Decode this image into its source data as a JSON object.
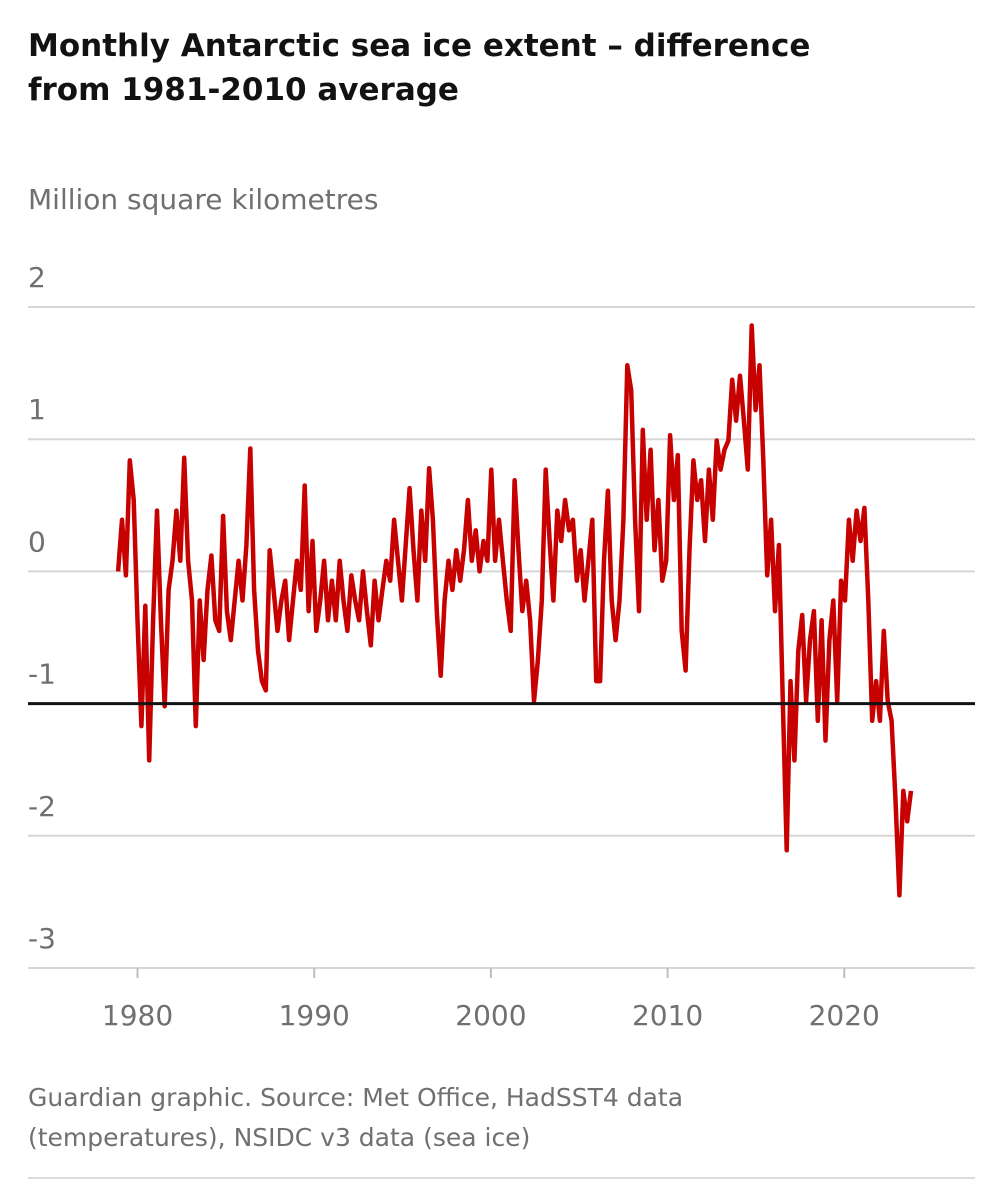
{
  "chart_data": {
    "type": "line",
    "title": "Monthly Antarctic sea ice extent – difference from 1981-2010 average",
    "y_label": "Million square kilometres",
    "source": "Guardian graphic. Source: Met Office, HadSST4 data (temperatures), NSIDC v3 data (sea ice)",
    "color": "#c70000",
    "grid": true,
    "reference_y": -1,
    "xlim": [
      1973.8,
      2027.4
    ],
    "xticks": [
      1980,
      1990,
      2000,
      2010,
      2020
    ],
    "ylim": [
      -3,
      2
    ],
    "yticks": [
      2,
      1,
      0,
      -1,
      -2,
      -3
    ],
    "x": [
      1978.9,
      1979.12,
      1979.34,
      1979.56,
      1979.78,
      1980.0,
      1980.22,
      1980.44,
      1980.66,
      1980.88,
      1981.1,
      1981.32,
      1981.54,
      1981.76,
      1981.98,
      1982.2,
      1982.42,
      1982.64,
      1982.86,
      1983.08,
      1983.3,
      1983.52,
      1983.74,
      1983.96,
      1984.18,
      1984.4,
      1984.62,
      1984.84,
      1985.06,
      1985.28,
      1985.5,
      1985.72,
      1985.94,
      1986.16,
      1986.38,
      1986.6,
      1986.82,
      1987.04,
      1987.26,
      1987.48,
      1987.7,
      1987.92,
      1988.14,
      1988.36,
      1988.58,
      1988.8,
      1989.02,
      1989.24,
      1989.46,
      1989.68,
      1989.9,
      1990.12,
      1990.34,
      1990.56,
      1990.78,
      1991.0,
      1991.22,
      1991.44,
      1991.66,
      1991.88,
      1992.1,
      1992.32,
      1992.54,
      1992.76,
      1992.98,
      1993.2,
      1993.42,
      1993.64,
      1993.86,
      1994.08,
      1994.3,
      1994.52,
      1994.74,
      1994.96,
      1995.18,
      1995.4,
      1995.62,
      1995.84,
      1996.06,
      1996.28,
      1996.5,
      1996.72,
      1996.94,
      1997.16,
      1997.38,
      1997.6,
      1997.82,
      1998.04,
      1998.26,
      1998.48,
      1998.7,
      1998.92,
      1999.14,
      1999.36,
      1999.58,
      1999.8,
      2000.02,
      2000.24,
      2000.46,
      2000.68,
      2000.9,
      2001.12,
      2001.34,
      2001.56,
      2001.78,
      2002.0,
      2002.22,
      2002.44,
      2002.66,
      2002.88,
      2003.1,
      2003.32,
      2003.54,
      2003.76,
      2003.98,
      2004.2,
      2004.42,
      2004.64,
      2004.86,
      2005.08,
      2005.3,
      2005.52,
      2005.74,
      2005.96,
      2006.18,
      2006.4,
      2006.62,
      2006.84,
      2007.06,
      2007.28,
      2007.5,
      2007.72,
      2007.94,
      2008.16,
      2008.38,
      2008.6,
      2008.82,
      2009.04,
      2009.26,
      2009.48,
      2009.7,
      2009.92,
      2010.14,
      2010.36,
      2010.58,
      2010.8,
      2011.02,
      2011.24,
      2011.46,
      2011.68,
      2011.9,
      2012.12,
      2012.34,
      2012.56,
      2012.78,
      2013.0,
      2013.22,
      2013.44,
      2013.66,
      2013.88,
      2014.1,
      2014.32,
      2014.54,
      2014.76,
      2014.98,
      2015.2,
      2015.42,
      2015.64,
      2015.86,
      2016.08,
      2016.3,
      2016.52,
      2016.74,
      2016.96,
      2017.18,
      2017.4,
      2017.62,
      2017.84,
      2018.06,
      2018.28,
      2018.5,
      2018.72,
      2018.94,
      2019.16,
      2019.38,
      2019.6,
      2019.82,
      2020.04,
      2020.26,
      2020.48,
      2020.7,
      2020.92,
      2021.14,
      2021.36,
      2021.58,
      2021.8,
      2022.02,
      2022.24,
      2022.46,
      2022.68,
      2022.9,
      2023.12,
      2023.34,
      2023.56,
      2023.78
    ],
    "values": [
      0.0,
      0.39,
      -0.03,
      0.84,
      0.54,
      -0.37,
      -1.17,
      -0.26,
      -1.43,
      -0.37,
      0.46,
      -0.37,
      -1.02,
      -0.14,
      0.08,
      0.46,
      0.08,
      0.86,
      0.08,
      -0.22,
      -1.17,
      -0.22,
      -0.67,
      -0.14,
      0.12,
      -0.37,
      -0.45,
      0.42,
      -0.3,
      -0.52,
      -0.22,
      0.08,
      -0.22,
      0.2,
      0.93,
      -0.14,
      -0.6,
      -0.83,
      -0.9,
      0.16,
      -0.14,
      -0.45,
      -0.22,
      -0.07,
      -0.52,
      -0.22,
      0.08,
      -0.14,
      0.65,
      -0.3,
      0.23,
      -0.45,
      -0.22,
      0.08,
      -0.37,
      -0.07,
      -0.37,
      0.08,
      -0.22,
      -0.45,
      -0.03,
      -0.22,
      -0.37,
      0.0,
      -0.3,
      -0.56,
      -0.07,
      -0.37,
      -0.14,
      0.08,
      -0.07,
      0.39,
      0.08,
      -0.22,
      0.2,
      0.63,
      0.16,
      -0.22,
      0.46,
      0.08,
      0.78,
      0.39,
      -0.3,
      -0.79,
      -0.22,
      0.08,
      -0.14,
      0.16,
      -0.07,
      0.16,
      0.54,
      0.08,
      0.31,
      0.0,
      0.23,
      0.08,
      0.77,
      0.08,
      0.39,
      0.08,
      -0.22,
      -0.45,
      0.69,
      0.16,
      -0.3,
      -0.07,
      -0.37,
      -0.98,
      -0.67,
      -0.22,
      0.77,
      0.23,
      -0.22,
      0.46,
      0.23,
      0.54,
      0.31,
      0.39,
      -0.07,
      0.16,
      -0.22,
      0.08,
      0.39,
      -0.83,
      -0.83,
      0.08,
      0.61,
      -0.22,
      -0.52,
      -0.22,
      0.39,
      1.56,
      1.37,
      0.39,
      -0.3,
      1.07,
      0.39,
      0.92,
      0.16,
      0.54,
      -0.07,
      0.08,
      1.03,
      0.54,
      0.88,
      -0.45,
      -0.75,
      0.16,
      0.84,
      0.54,
      0.69,
      0.23,
      0.77,
      0.39,
      0.99,
      0.77,
      0.92,
      0.99,
      1.45,
      1.14,
      1.48,
      1.14,
      0.77,
      1.86,
      1.22,
      1.56,
      0.84,
      -0.03,
      0.39,
      -0.3,
      0.2,
      -0.98,
      -2.11,
      -0.83,
      -1.43,
      -0.6,
      -0.33,
      -0.98,
      -0.52,
      -0.3,
      -1.13,
      -0.37,
      -1.28,
      -0.52,
      -0.22,
      -0.98,
      -0.07,
      -0.22,
      0.39,
      0.08,
      0.46,
      0.23,
      0.48,
      -0.22,
      -1.13,
      -0.83,
      -1.13,
      -0.45,
      -0.98,
      -1.13,
      -1.73,
      -2.45,
      -1.66,
      -1.89,
      -1.66
    ]
  }
}
